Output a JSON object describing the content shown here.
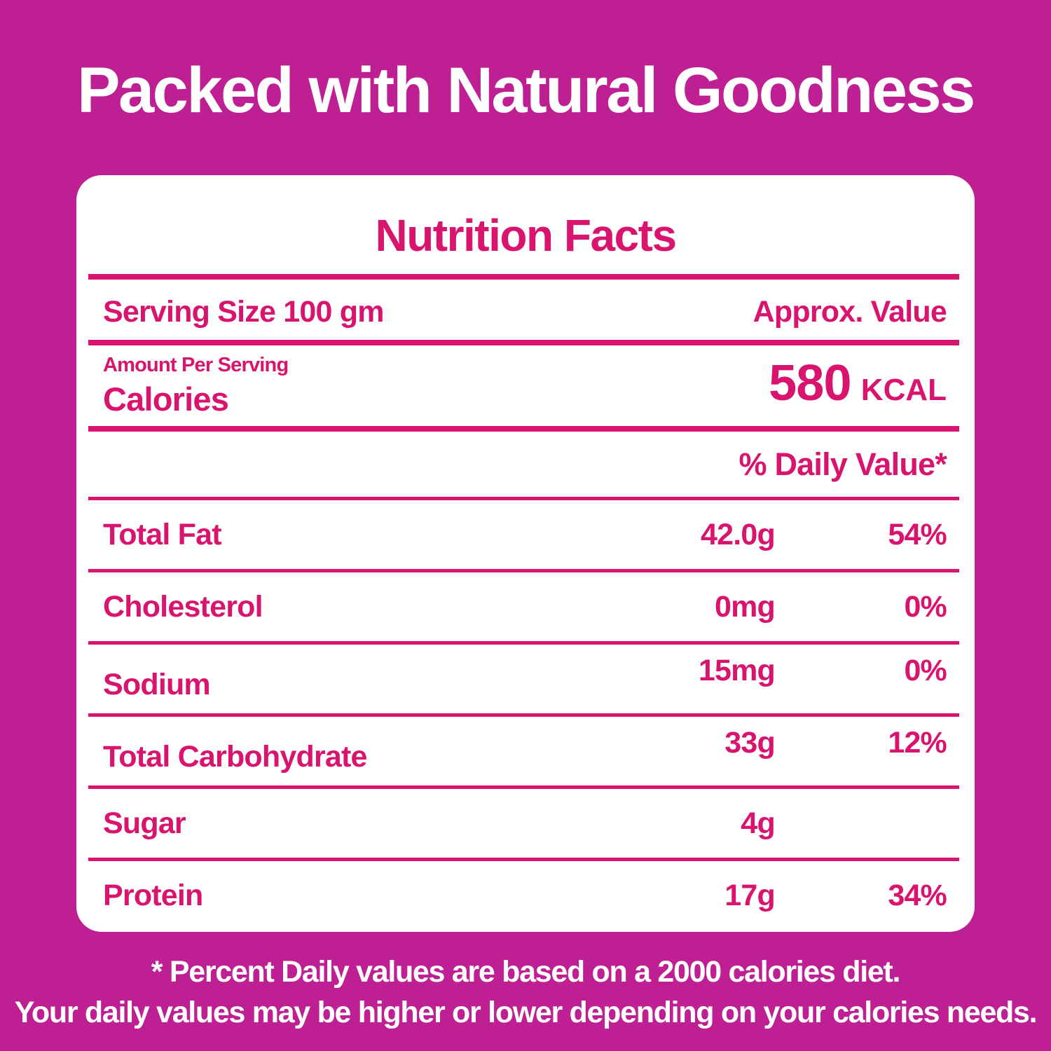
{
  "colors": {
    "background": "#BE2093",
    "accent": "#D9146F",
    "card": "#FFFFFF",
    "title_text": "#FFFFFF"
  },
  "header": {
    "title": "Packed with Natural Goodness"
  },
  "nutrition": {
    "heading": "Nutrition Facts",
    "serving_size": "Serving Size 100 gm",
    "approx_value": "Approx. Value",
    "amount_per_serving": "Amount Per Serving",
    "calories_label": "Calories",
    "calories_value": "580",
    "calories_unit": "KCAL",
    "daily_value_header": "% Daily Value*",
    "rows": [
      {
        "name": "Total Fat",
        "amount": "42.0g",
        "dv": "54%"
      },
      {
        "name": "Cholesterol",
        "amount": "0mg",
        "dv": "0%"
      },
      {
        "name": "Sodium",
        "amount": "15mg",
        "dv": "0%"
      },
      {
        "name": "Total Carbohydrate",
        "amount": "33g",
        "dv": "12%"
      },
      {
        "name": "Sugar",
        "amount": "4g",
        "dv": ""
      },
      {
        "name": "Protein",
        "amount": "17g",
        "dv": "34%"
      }
    ]
  },
  "footnote": {
    "line1": "* Percent Daily values are based on a 2000 calories diet.",
    "line2": "Your daily values may be higher or lower depending on your calories needs."
  }
}
